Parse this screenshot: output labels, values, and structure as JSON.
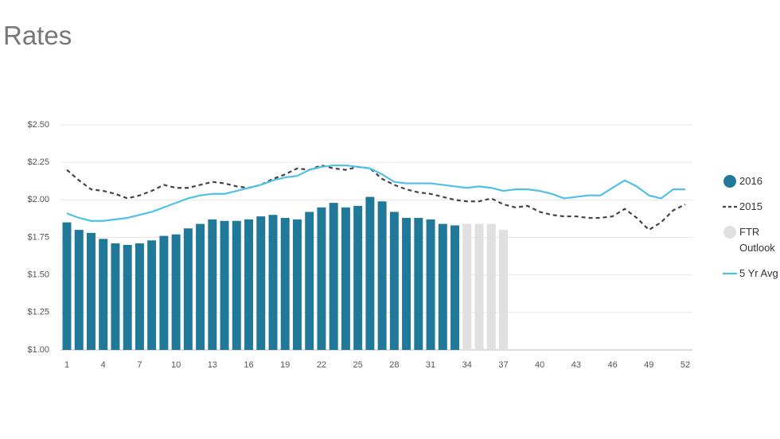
{
  "chart_data": {
    "type": "combo",
    "title": "Rates",
    "x": [
      1,
      2,
      3,
      4,
      5,
      6,
      7,
      8,
      9,
      10,
      11,
      12,
      13,
      14,
      15,
      16,
      17,
      18,
      19,
      20,
      21,
      22,
      23,
      24,
      25,
      26,
      27,
      28,
      29,
      30,
      31,
      32,
      33,
      34,
      35,
      36,
      37,
      38,
      39,
      40,
      41,
      42,
      43,
      44,
      45,
      46,
      47,
      48,
      49,
      50,
      51,
      52
    ],
    "xlim": [
      1,
      52
    ],
    "xticks": [
      1,
      4,
      7,
      10,
      13,
      16,
      19,
      22,
      25,
      28,
      31,
      34,
      37,
      40,
      43,
      46,
      49,
      52
    ],
    "ylim": [
      1,
      2.5
    ],
    "yticks": [
      {
        "value": 1,
        "label": "$1.00"
      },
      {
        "value": 1.25,
        "label": "$1.25"
      },
      {
        "value": 1.5,
        "label": "$1.50"
      },
      {
        "value": 1.75,
        "label": "$1.75"
      },
      {
        "value": 2,
        "label": "$2.00"
      },
      {
        "value": 2.25,
        "label": "$2.25"
      },
      {
        "value": 2.5,
        "label": "$2.50"
      }
    ],
    "grid": true,
    "legend": "right",
    "series": [
      {
        "name": "2016",
        "type": "bar",
        "color": "#21799a",
        "values": [
          1.85,
          1.8,
          1.78,
          1.74,
          1.71,
          1.7,
          1.71,
          1.73,
          1.76,
          1.77,
          1.81,
          1.84,
          1.87,
          1.86,
          1.86,
          1.87,
          1.89,
          1.9,
          1.88,
          1.87,
          1.92,
          1.95,
          1.98,
          1.95,
          1.96,
          2.02,
          1.99,
          1.92,
          1.88,
          1.88,
          1.87,
          1.84,
          1.83,
          null,
          null,
          null,
          null,
          null,
          null,
          null,
          null,
          null,
          null,
          null,
          null,
          null,
          null,
          null,
          null,
          null,
          null,
          null
        ]
      },
      {
        "name": "2015",
        "type": "line",
        "dashed": true,
        "color": "#444444",
        "values": [
          2.2,
          2.13,
          2.07,
          2.06,
          2.04,
          2.01,
          2.03,
          2.06,
          2.1,
          2.08,
          2.08,
          2.1,
          2.12,
          2.11,
          2.09,
          2.08,
          2.1,
          2.14,
          2.17,
          2.21,
          2.2,
          2.23,
          2.21,
          2.2,
          2.22,
          2.21,
          2.14,
          2.1,
          2.07,
          2.05,
          2.04,
          2.02,
          2.0,
          1.99,
          1.99,
          2.01,
          1.97,
          1.95,
          1.96,
          1.92,
          1.9,
          1.89,
          1.89,
          1.88,
          1.88,
          1.89,
          1.94,
          1.88,
          1.8,
          1.85,
          1.93,
          1.97
        ]
      },
      {
        "name": "FTR Outlook",
        "type": "bar",
        "color": "#e0e0e0",
        "values": [
          null,
          null,
          null,
          null,
          null,
          null,
          null,
          null,
          null,
          null,
          null,
          null,
          null,
          null,
          null,
          null,
          null,
          null,
          null,
          null,
          null,
          null,
          null,
          null,
          null,
          null,
          null,
          null,
          null,
          null,
          null,
          null,
          null,
          1.84,
          1.84,
          1.84,
          1.8,
          null,
          null,
          null,
          null,
          null,
          null,
          null,
          null,
          null,
          null,
          null,
          null,
          null,
          null,
          null
        ]
      },
      {
        "name": "5 Yr Avg",
        "type": "line",
        "dashed": false,
        "color": "#4fc0e6",
        "values": [
          1.91,
          1.88,
          1.86,
          1.86,
          1.87,
          1.88,
          1.9,
          1.92,
          1.95,
          1.98,
          2.01,
          2.03,
          2.04,
          2.04,
          2.06,
          2.08,
          2.1,
          2.13,
          2.15,
          2.16,
          2.2,
          2.22,
          2.23,
          2.23,
          2.22,
          2.21,
          2.17,
          2.12,
          2.11,
          2.11,
          2.11,
          2.1,
          2.09,
          2.08,
          2.09,
          2.08,
          2.06,
          2.07,
          2.07,
          2.06,
          2.04,
          2.01,
          2.02,
          2.03,
          2.03,
          2.08,
          2.13,
          2.09,
          2.03,
          2.01,
          2.07,
          2.07
        ]
      }
    ]
  }
}
